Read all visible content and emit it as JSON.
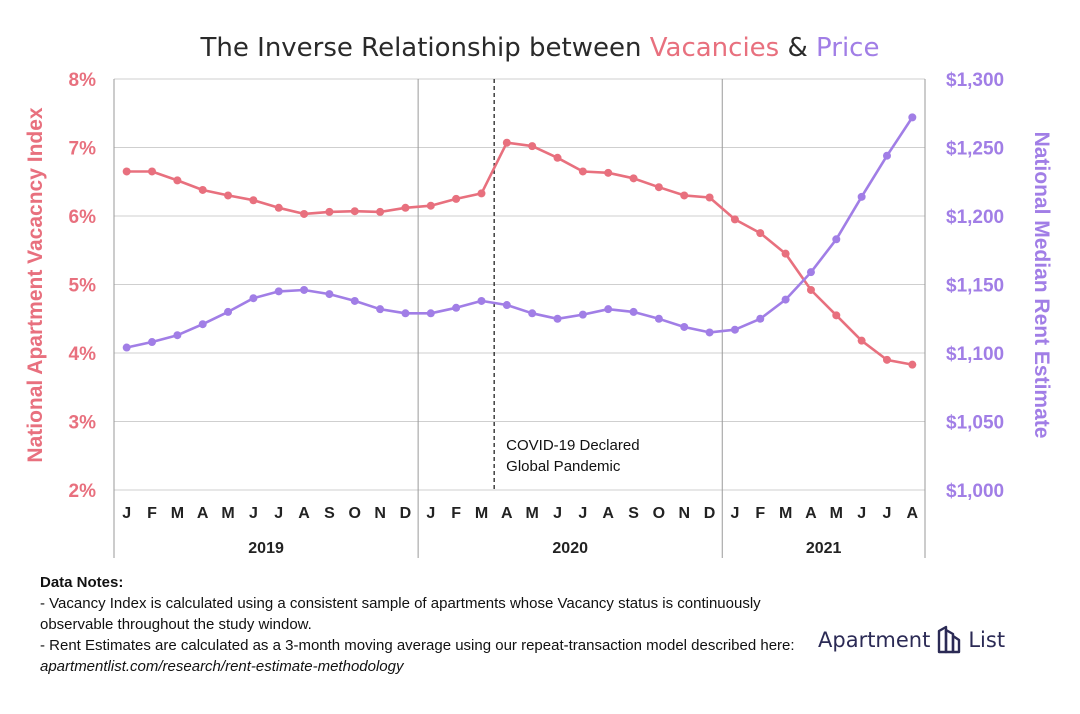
{
  "title": {
    "part1": "The Inverse Relationship between ",
    "part2": "Vacancies",
    "part3": " & ",
    "part4": "Price"
  },
  "colors": {
    "vacancy": "#e8707e",
    "price": "#a17ee6",
    "grid": "#cfcfcf",
    "text": "#222222"
  },
  "chart_data": {
    "type": "line",
    "title": "The Inverse Relationship between Vacancies & Price",
    "x_tick_labels": [
      "J",
      "F",
      "M",
      "A",
      "M",
      "J",
      "J",
      "A",
      "S",
      "O",
      "N",
      "D",
      "J",
      "F",
      "M",
      "A",
      "M",
      "J",
      "J",
      "A",
      "S",
      "O",
      "N",
      "D",
      "J",
      "F",
      "M",
      "A",
      "M",
      "J",
      "J",
      "A"
    ],
    "x_group_labels": [
      "2019",
      "2020",
      "2021"
    ],
    "y_left": {
      "label": "National Apartment Vacacncy Index",
      "range": [
        2,
        8
      ],
      "ticks": [
        "2%",
        "3%",
        "4%",
        "5%",
        "6%",
        "7%",
        "8%"
      ],
      "tick_values": [
        2,
        3,
        4,
        5,
        6,
        7,
        8
      ]
    },
    "y_right": {
      "label": "National Median Rent Estimate",
      "range": [
        1000,
        1300
      ],
      "ticks": [
        "$1,000",
        "$1,050",
        "$1,100",
        "$1,150",
        "$1,200",
        "$1,250",
        "$1,300"
      ],
      "tick_values": [
        1000,
        1050,
        1100,
        1150,
        1200,
        1250,
        1300
      ]
    },
    "series": [
      {
        "axis": "left",
        "values": [
          6.65,
          6.65,
          6.52,
          6.38,
          6.3,
          6.23,
          6.12,
          6.03,
          6.06,
          6.07,
          6.06,
          6.12,
          6.15,
          6.25,
          6.33,
          7.07,
          7.02,
          6.85,
          6.65,
          6.63,
          6.55,
          6.42,
          6.3,
          6.27,
          5.95,
          5.75,
          5.45,
          4.92,
          4.55,
          4.18,
          3.9,
          3.83
        ]
      },
      {
        "axis": "right",
        "values": [
          1104,
          1108,
          1113,
          1121,
          1130,
          1140,
          1145,
          1146,
          1143,
          1138,
          1132,
          1129,
          1129,
          1133,
          1138,
          1135,
          1129,
          1125,
          1128,
          1132,
          1130,
          1125,
          1119,
          1115,
          1117,
          1125,
          1139,
          1159,
          1183,
          1214,
          1244,
          1272
        ]
      }
    ],
    "annotation": {
      "x_index": 14.5,
      "line1": "COVID-19 Declared",
      "line2": "Global Pandemic"
    },
    "grid": true
  },
  "notes": {
    "heading": "Data Notes:",
    "line1": "- Vacancy Index is calculated using a consistent sample of apartments whose Vacancy status is continuously observable throughout the study window.",
    "line2": "- Rent Estimates are calculated as a 3-month moving average using our repeat-transaction model described here: ",
    "url": "apartmentlist.com/research/rent-estimate-methodology"
  },
  "logo": {
    "word1": "Apartment",
    "word2": "List"
  }
}
